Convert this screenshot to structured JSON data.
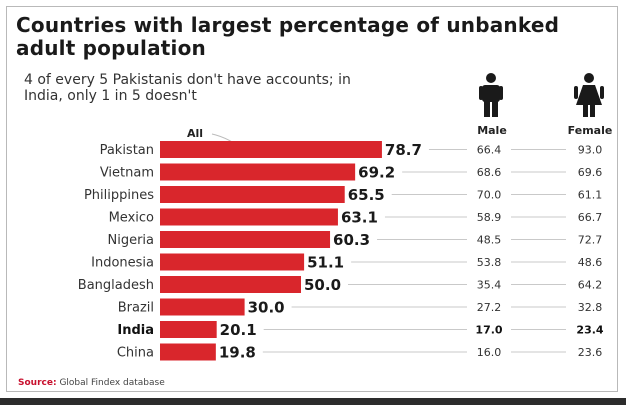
{
  "title": "Countries with largest percentage of unbanked adult population",
  "subtitle": "4 of every 5 Pakistanis don't have accounts; in India, only 1 in 5 doesn't",
  "columns": {
    "all": "All",
    "male": "Male",
    "female": "Female"
  },
  "icons": {
    "male": "male-figure-icon",
    "female": "female-figure-icon"
  },
  "source": {
    "label": "Source:",
    "text": "Global Findex database"
  },
  "colors": {
    "bar": "#d9262c",
    "leader": "#c9c9c9",
    "text": "#222222",
    "highlight": "#111111"
  },
  "chart_data": {
    "type": "bar",
    "orientation": "horizontal",
    "categories": [
      "Pakistan",
      "Vietnam",
      "Philippines",
      "Mexico",
      "Nigeria",
      "Indonesia",
      "Bangladesh",
      "Brazil",
      "India",
      "China"
    ],
    "series": [
      {
        "name": "All",
        "values": [
          78.7,
          69.2,
          65.5,
          63.1,
          60.3,
          51.1,
          50.0,
          30.0,
          20.1,
          19.8
        ]
      },
      {
        "name": "Male",
        "values": [
          66.4,
          68.6,
          70.0,
          58.9,
          48.5,
          53.8,
          35.4,
          27.2,
          17.0,
          16.0
        ]
      },
      {
        "name": "Female",
        "values": [
          93.0,
          69.6,
          61.1,
          66.7,
          72.7,
          48.6,
          64.2,
          32.8,
          23.4,
          23.6
        ]
      }
    ],
    "value_labels": {
      "all": [
        "78.7",
        "69.2",
        "65.5",
        "63.1",
        "60.3",
        "51.1",
        "50.0",
        "30.0",
        "20.1",
        "19.8"
      ],
      "male": [
        "66.4",
        "68.6",
        "70.0",
        "58.9",
        "48.5",
        "53.8",
        "35.4",
        "27.2",
        "17.0",
        "16.0"
      ],
      "female": [
        "93.0",
        "69.6",
        "61.1",
        "66.7",
        "72.7",
        "48.6",
        "64.2",
        "32.8",
        "23.4",
        "23.6"
      ]
    },
    "highlight_category": "India",
    "xlim": [
      0,
      100
    ],
    "grid": false
  }
}
